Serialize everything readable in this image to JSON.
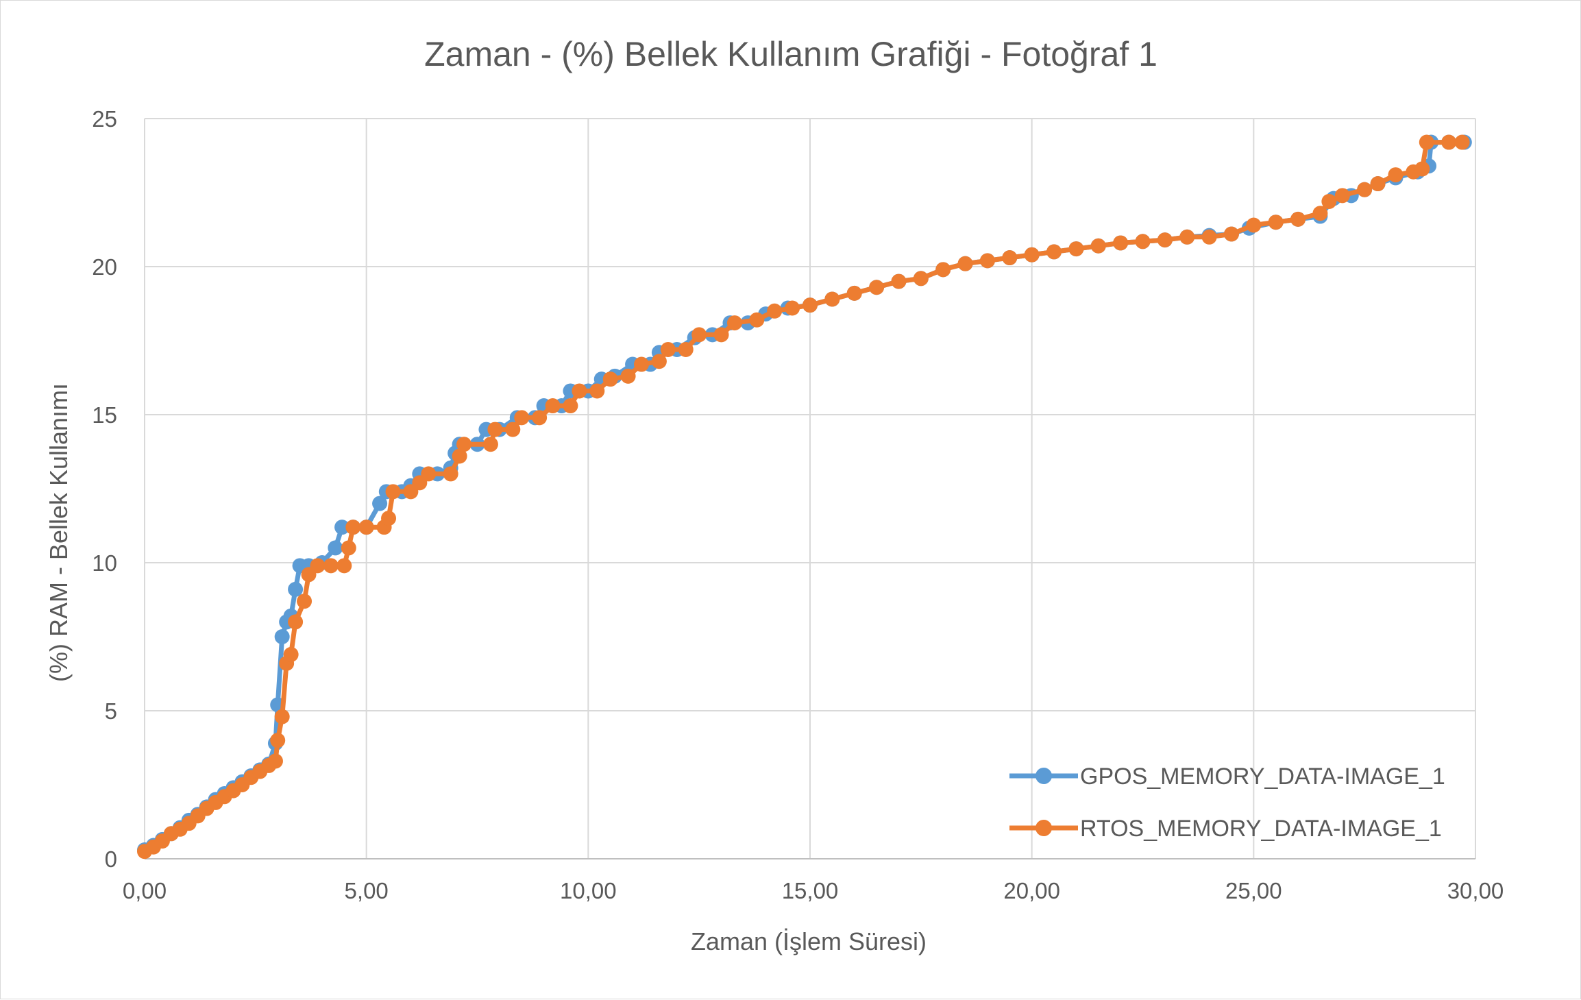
{
  "chart_data": {
    "type": "line",
    "title": "Zaman - (%) Bellek Kullanım Grafiği - Fotoğraf 1",
    "xlabel": "Zaman  (İşlem Süresi)",
    "ylabel": "(%) RAM - Bellek Kullanımı",
    "xlim": [
      0,
      30
    ],
    "ylim": [
      0,
      25
    ],
    "x_ticks": [
      "0,00",
      "5,00",
      "10,00",
      "15,00",
      "20,00",
      "25,00",
      "30,00"
    ],
    "y_ticks": [
      "0",
      "5",
      "10",
      "15",
      "20",
      "25"
    ],
    "grid": true,
    "legend_position": "bottom-right",
    "series": [
      {
        "name": "GPOS_MEMORY_DATA-IMAGE_1",
        "color": "#5b9bd5",
        "points": [
          [
            0.0,
            0.3
          ],
          [
            0.2,
            0.45
          ],
          [
            0.4,
            0.65
          ],
          [
            0.6,
            0.85
          ],
          [
            0.8,
            1.05
          ],
          [
            1.0,
            1.3
          ],
          [
            1.2,
            1.5
          ],
          [
            1.4,
            1.75
          ],
          [
            1.6,
            2.0
          ],
          [
            1.8,
            2.2
          ],
          [
            2.0,
            2.4
          ],
          [
            2.2,
            2.6
          ],
          [
            2.4,
            2.8
          ],
          [
            2.6,
            3.0
          ],
          [
            2.8,
            3.2
          ],
          [
            2.95,
            3.9
          ],
          [
            3.0,
            5.2
          ],
          [
            3.1,
            7.5
          ],
          [
            3.2,
            8.0
          ],
          [
            3.3,
            8.2
          ],
          [
            3.4,
            9.1
          ],
          [
            3.5,
            9.9
          ],
          [
            3.7,
            9.9
          ],
          [
            4.0,
            10.0
          ],
          [
            4.3,
            10.5
          ],
          [
            4.45,
            11.2
          ],
          [
            4.7,
            11.2
          ],
          [
            5.0,
            11.2
          ],
          [
            5.3,
            12.0
          ],
          [
            5.45,
            12.4
          ],
          [
            5.8,
            12.4
          ],
          [
            6.0,
            12.6
          ],
          [
            6.2,
            13.0
          ],
          [
            6.6,
            13.0
          ],
          [
            6.9,
            13.2
          ],
          [
            7.0,
            13.7
          ],
          [
            7.1,
            14.0
          ],
          [
            7.5,
            14.0
          ],
          [
            7.7,
            14.5
          ],
          [
            8.0,
            14.5
          ],
          [
            8.4,
            14.9
          ],
          [
            8.8,
            14.9
          ],
          [
            9.0,
            15.3
          ],
          [
            9.4,
            15.3
          ],
          [
            9.6,
            15.8
          ],
          [
            10.0,
            15.8
          ],
          [
            10.3,
            16.2
          ],
          [
            10.6,
            16.3
          ],
          [
            11.0,
            16.7
          ],
          [
            11.4,
            16.7
          ],
          [
            11.6,
            17.1
          ],
          [
            12.0,
            17.2
          ],
          [
            12.4,
            17.6
          ],
          [
            12.8,
            17.7
          ],
          [
            13.2,
            18.1
          ],
          [
            13.6,
            18.1
          ],
          [
            14.0,
            18.4
          ],
          [
            14.5,
            18.6
          ],
          [
            15.0,
            18.7
          ],
          [
            15.5,
            18.9
          ],
          [
            16.0,
            19.1
          ],
          [
            16.5,
            19.3
          ],
          [
            17.0,
            19.5
          ],
          [
            17.5,
            19.6
          ],
          [
            18.0,
            19.9
          ],
          [
            18.5,
            20.1
          ],
          [
            19.0,
            20.2
          ],
          [
            19.5,
            20.3
          ],
          [
            20.0,
            20.4
          ],
          [
            20.5,
            20.5
          ],
          [
            21.0,
            20.6
          ],
          [
            21.5,
            20.7
          ],
          [
            22.0,
            20.8
          ],
          [
            22.5,
            20.85
          ],
          [
            23.0,
            20.9
          ],
          [
            23.5,
            21.0
          ],
          [
            24.0,
            21.05
          ],
          [
            24.5,
            21.1
          ],
          [
            24.9,
            21.3
          ],
          [
            25.5,
            21.5
          ],
          [
            26.0,
            21.6
          ],
          [
            26.5,
            21.7
          ],
          [
            26.8,
            22.3
          ],
          [
            27.2,
            22.4
          ],
          [
            27.5,
            22.6
          ],
          [
            27.8,
            22.8
          ],
          [
            28.2,
            23.0
          ],
          [
            28.7,
            23.2
          ],
          [
            28.95,
            23.4
          ],
          [
            29.0,
            24.2
          ],
          [
            29.4,
            24.2
          ],
          [
            29.75,
            24.2
          ]
        ]
      },
      {
        "name": "RTOS_MEMORY_DATA-IMAGE_1",
        "color": "#ed7d31",
        "points": [
          [
            0.0,
            0.25
          ],
          [
            0.2,
            0.4
          ],
          [
            0.4,
            0.6
          ],
          [
            0.6,
            0.85
          ],
          [
            0.8,
            1.0
          ],
          [
            1.0,
            1.2
          ],
          [
            1.2,
            1.45
          ],
          [
            1.4,
            1.7
          ],
          [
            1.6,
            1.9
          ],
          [
            1.8,
            2.1
          ],
          [
            2.0,
            2.3
          ],
          [
            2.2,
            2.5
          ],
          [
            2.4,
            2.75
          ],
          [
            2.6,
            2.95
          ],
          [
            2.8,
            3.15
          ],
          [
            2.95,
            3.3
          ],
          [
            3.0,
            4.0
          ],
          [
            3.1,
            4.8
          ],
          [
            3.2,
            6.6
          ],
          [
            3.3,
            6.9
          ],
          [
            3.4,
            8.0
          ],
          [
            3.6,
            8.7
          ],
          [
            3.7,
            9.6
          ],
          [
            3.9,
            9.9
          ],
          [
            4.2,
            9.9
          ],
          [
            4.5,
            9.9
          ],
          [
            4.6,
            10.5
          ],
          [
            4.7,
            11.2
          ],
          [
            5.0,
            11.2
          ],
          [
            5.4,
            11.2
          ],
          [
            5.5,
            11.5
          ],
          [
            5.6,
            12.4
          ],
          [
            6.0,
            12.4
          ],
          [
            6.2,
            12.7
          ],
          [
            6.4,
            13.0
          ],
          [
            6.9,
            13.0
          ],
          [
            7.1,
            13.6
          ],
          [
            7.2,
            14.0
          ],
          [
            7.8,
            14.0
          ],
          [
            7.9,
            14.5
          ],
          [
            8.3,
            14.5
          ],
          [
            8.5,
            14.9
          ],
          [
            8.9,
            14.9
          ],
          [
            9.2,
            15.3
          ],
          [
            9.6,
            15.3
          ],
          [
            9.8,
            15.8
          ],
          [
            10.2,
            15.8
          ],
          [
            10.5,
            16.2
          ],
          [
            10.9,
            16.3
          ],
          [
            11.2,
            16.7
          ],
          [
            11.6,
            16.8
          ],
          [
            11.8,
            17.2
          ],
          [
            12.2,
            17.2
          ],
          [
            12.5,
            17.7
          ],
          [
            13.0,
            17.7
          ],
          [
            13.3,
            18.1
          ],
          [
            13.8,
            18.2
          ],
          [
            14.2,
            18.5
          ],
          [
            14.6,
            18.6
          ],
          [
            15.0,
            18.7
          ],
          [
            15.5,
            18.9
          ],
          [
            16.0,
            19.1
          ],
          [
            16.5,
            19.3
          ],
          [
            17.0,
            19.5
          ],
          [
            17.5,
            19.6
          ],
          [
            18.0,
            19.9
          ],
          [
            18.5,
            20.1
          ],
          [
            19.0,
            20.2
          ],
          [
            19.5,
            20.3
          ],
          [
            20.0,
            20.4
          ],
          [
            20.5,
            20.5
          ],
          [
            21.0,
            20.6
          ],
          [
            21.5,
            20.7
          ],
          [
            22.0,
            20.8
          ],
          [
            22.5,
            20.85
          ],
          [
            23.0,
            20.9
          ],
          [
            23.5,
            21.0
          ],
          [
            24.0,
            21.0
          ],
          [
            24.5,
            21.1
          ],
          [
            25.0,
            21.4
          ],
          [
            25.5,
            21.5
          ],
          [
            26.0,
            21.6
          ],
          [
            26.5,
            21.8
          ],
          [
            26.7,
            22.2
          ],
          [
            27.0,
            22.4
          ],
          [
            27.5,
            22.6
          ],
          [
            27.8,
            22.8
          ],
          [
            28.2,
            23.1
          ],
          [
            28.6,
            23.2
          ],
          [
            28.8,
            23.3
          ],
          [
            28.9,
            24.2
          ],
          [
            29.4,
            24.2
          ],
          [
            29.7,
            24.2
          ]
        ]
      }
    ]
  }
}
